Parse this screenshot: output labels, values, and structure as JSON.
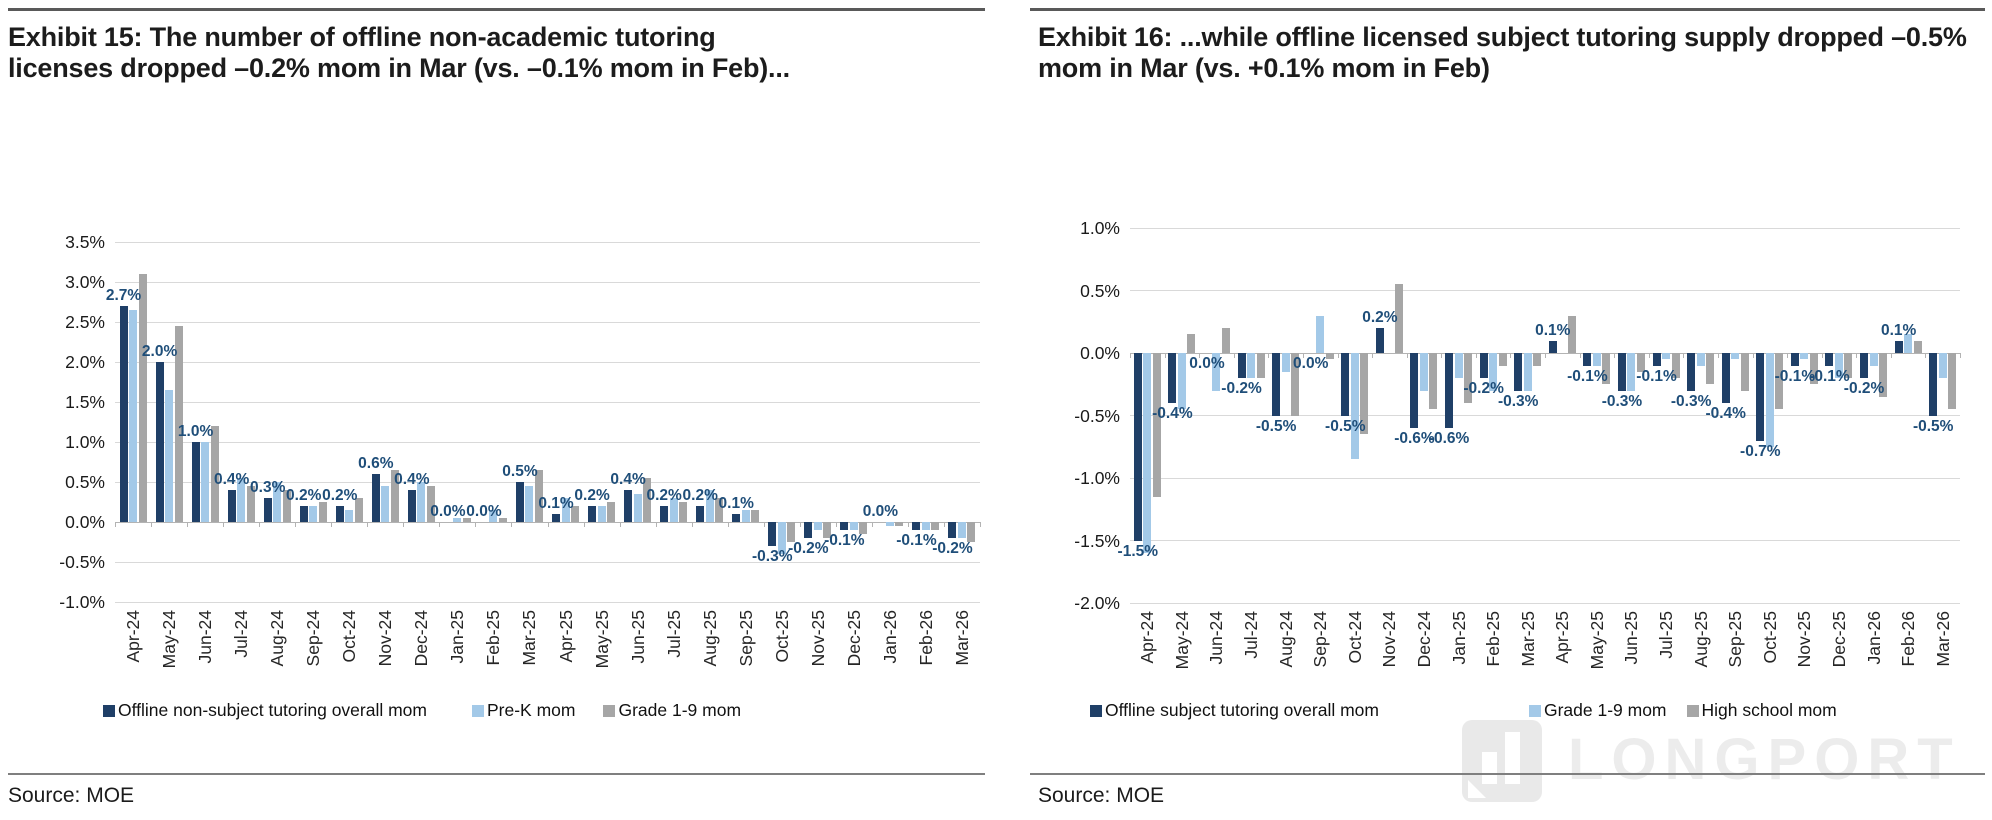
{
  "watermark": {
    "text": "LONGPORT"
  },
  "panels": [
    {
      "source": "Source: MOE"
    },
    {
      "source": "Source: MOE"
    }
  ],
  "chart_data": [
    {
      "type": "bar",
      "title": "Exhibit 15: The number of offline non-academic tutoring licenses dropped –0.2% mom in Mar (vs. –0.1% mom in Feb)...",
      "source": "Source: MOE",
      "categories": [
        "Apr-24",
        "May-24",
        "Jun-24",
        "Jul-24",
        "Aug-24",
        "Sep-24",
        "Oct-24",
        "Nov-24",
        "Dec-24",
        "Jan-25",
        "Feb-25",
        "Mar-25",
        "Apr-25",
        "May-25",
        "Jun-25",
        "Jul-25",
        "Aug-25",
        "Sep-25",
        "Oct-25",
        "Nov-25",
        "Dec-25",
        "Jan-26",
        "Feb-26",
        "Mar-26"
      ],
      "series": [
        {
          "name": "Offline non-subject tutoring overall mom",
          "color": "#1f3f67",
          "values": [
            2.7,
            2.0,
            1.0,
            0.4,
            0.3,
            0.2,
            0.2,
            0.6,
            0.4,
            0.0,
            0.0,
            0.5,
            0.1,
            0.2,
            0.4,
            0.2,
            0.2,
            0.1,
            -0.3,
            -0.2,
            -0.1,
            0.0,
            -0.1,
            -0.2
          ]
        },
        {
          "name": "Pre-K mom",
          "color": "#a3c9e8",
          "values": [
            2.65,
            1.65,
            1.0,
            0.55,
            0.5,
            0.2,
            0.15,
            0.45,
            0.5,
            0.05,
            0.15,
            0.45,
            0.3,
            0.2,
            0.35,
            0.3,
            0.4,
            0.15,
            -0.4,
            -0.1,
            -0.1,
            -0.05,
            -0.1,
            -0.2
          ]
        },
        {
          "name": "Grade 1-9 mom",
          "color": "#a6a6a6",
          "values": [
            3.1,
            2.45,
            1.2,
            0.45,
            0.4,
            0.25,
            0.3,
            0.65,
            0.45,
            0.05,
            0.05,
            0.65,
            0.2,
            0.25,
            0.55,
            0.25,
            0.3,
            0.15,
            -0.25,
            -0.2,
            -0.15,
            -0.05,
            -0.1,
            -0.25
          ]
        }
      ],
      "xlabel": "",
      "ylabel": "",
      "ylim": [
        -1.0,
        3.5
      ],
      "ystep": 0.5,
      "ytick_labels": [
        "3.5%",
        "3.0%",
        "2.5%",
        "2.0%",
        "1.5%",
        "1.0%",
        "0.5%",
        "0.0%",
        "-0.5%",
        "-1.0%"
      ],
      "grid": true,
      "legend_position": "bottom",
      "data_label_series": 0,
      "data_label_color": "#1f4e79",
      "zero_label_side": "above"
    },
    {
      "type": "bar",
      "title": "Exhibit 16: ...while offline licensed subject tutoring supply dropped –0.5% mom in Mar (vs. +0.1% mom in Feb)",
      "source": "Source: MOE",
      "categories": [
        "Apr-24",
        "May-24",
        "Jun-24",
        "Jul-24",
        "Aug-24",
        "Sep-24",
        "Oct-24",
        "Nov-24",
        "Dec-24",
        "Jan-25",
        "Feb-25",
        "Mar-25",
        "Apr-25",
        "May-25",
        "Jun-25",
        "Jul-25",
        "Aug-25",
        "Sep-25",
        "Oct-25",
        "Nov-25",
        "Dec-25",
        "Jan-26",
        "Feb-26",
        "Mar-26"
      ],
      "series": [
        {
          "name": "Offline subject tutoring overall mom",
          "color": "#1f3f67",
          "values": [
            -1.5,
            -0.4,
            0.0,
            -0.2,
            -0.5,
            0.0,
            -0.5,
            0.2,
            -0.6,
            -0.6,
            -0.2,
            -0.3,
            0.1,
            -0.1,
            -0.3,
            -0.1,
            -0.3,
            -0.4,
            -0.7,
            -0.1,
            -0.1,
            -0.2,
            0.1,
            -0.5
          ]
        },
        {
          "name": "Grade 1-9 mom",
          "color": "#a3c9e8",
          "values": [
            -1.6,
            -0.45,
            -0.3,
            -0.2,
            -0.15,
            0.3,
            -0.85,
            0.0,
            -0.3,
            -0.2,
            -0.3,
            -0.3,
            0.0,
            -0.1,
            -0.3,
            -0.05,
            -0.1,
            -0.05,
            -0.75,
            -0.05,
            -0.2,
            -0.1,
            0.15,
            -0.2
          ]
        },
        {
          "name": "High school mom",
          "color": "#a6a6a6",
          "values": [
            -1.15,
            0.15,
            0.2,
            -0.2,
            -0.5,
            -0.05,
            -0.65,
            0.55,
            -0.45,
            -0.4,
            -0.1,
            -0.1,
            0.3,
            -0.25,
            -0.15,
            -0.2,
            -0.25,
            -0.3,
            -0.45,
            -0.25,
            -0.2,
            -0.35,
            0.1,
            -0.45
          ]
        }
      ],
      "xlabel": "",
      "ylabel": "",
      "ylim": [
        -2.0,
        1.0
      ],
      "ystep": 0.5,
      "ytick_labels": [
        "1.0%",
        "0.5%",
        "0.0%",
        "-0.5%",
        "-1.0%",
        "-1.5%",
        "-2.0%"
      ],
      "grid": true,
      "legend_position": "bottom",
      "data_label_series": 0,
      "data_label_color": "#1f4e79",
      "zero_label_side": "below"
    }
  ]
}
